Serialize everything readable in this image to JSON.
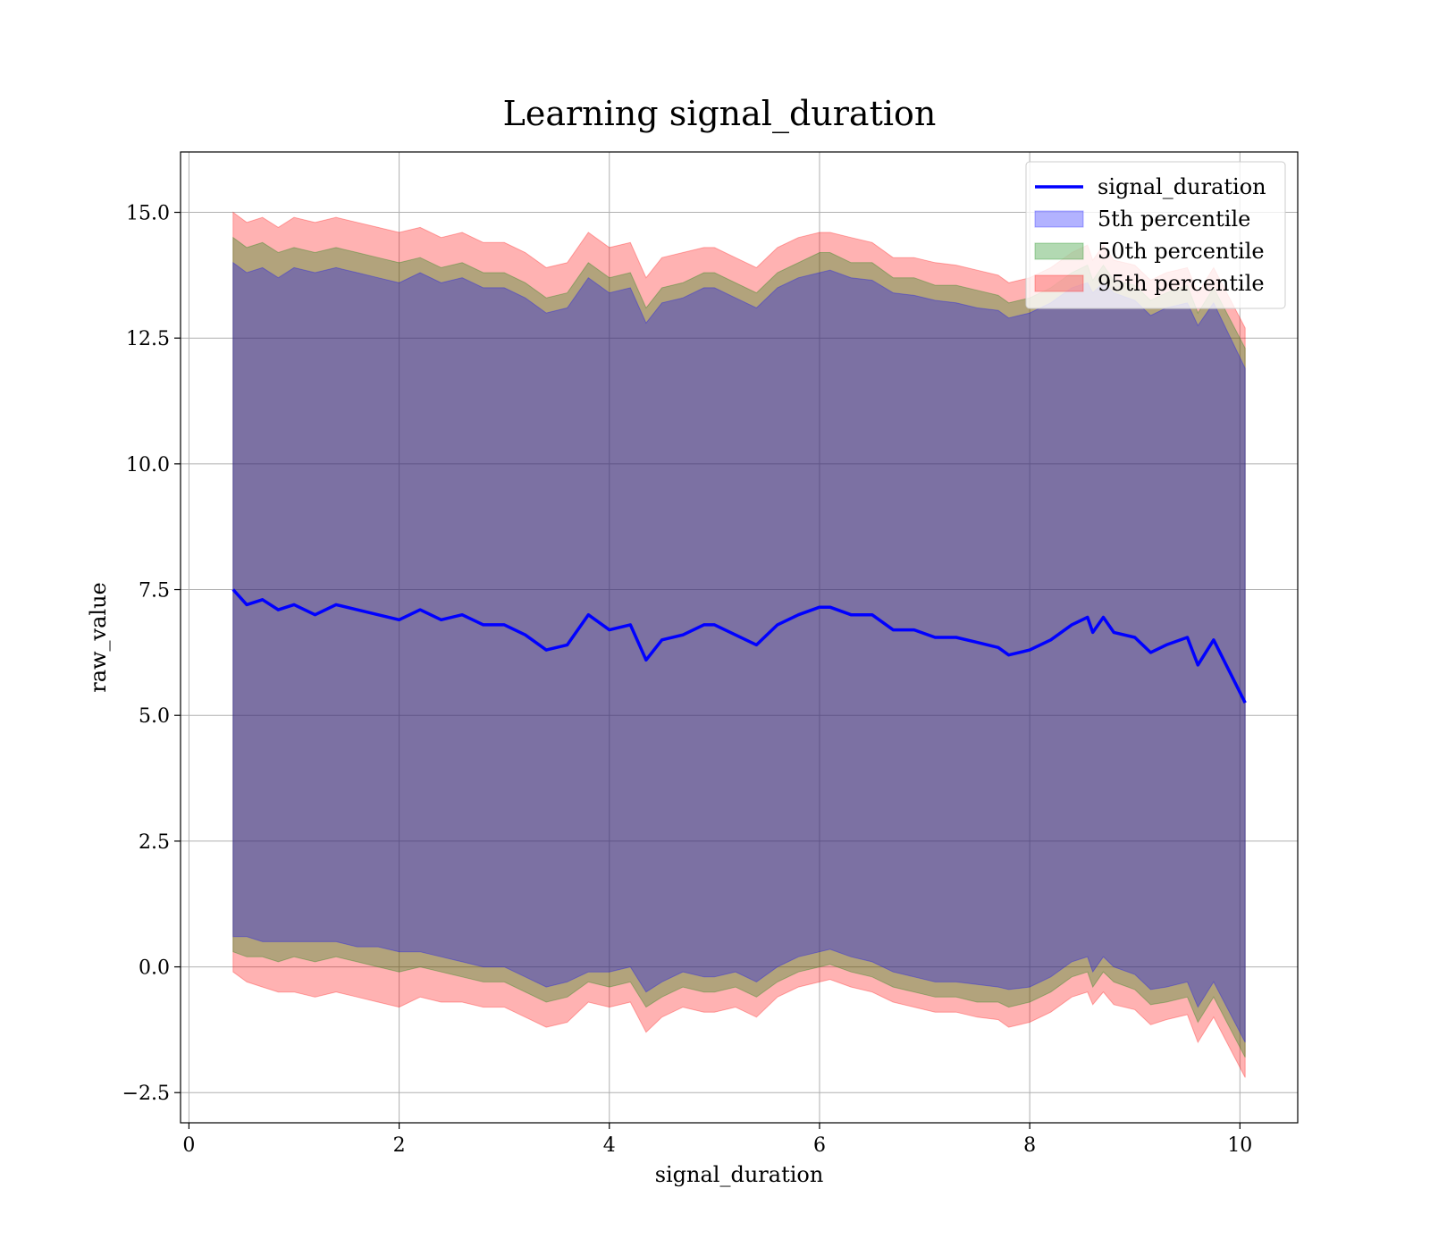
{
  "chart_data": {
    "type": "area",
    "title": "Learning signal_duration",
    "xlabel": "signal_duration",
    "ylabel": "raw_value",
    "xlim": [
      -0.08,
      10.55
    ],
    "ylim": [
      -3.1,
      16.2
    ],
    "xticks": [
      0,
      2,
      4,
      6,
      8,
      10
    ],
    "xtick_labels": [
      "0",
      "2",
      "4",
      "6",
      "8",
      "10"
    ],
    "yticks": [
      -2.5,
      0.0,
      2.5,
      5.0,
      7.5,
      10.0,
      12.5,
      15.0
    ],
    "ytick_labels": [
      "−2.5",
      "0.0",
      "2.5",
      "5.0",
      "7.5",
      "10.0",
      "12.5",
      "15.0"
    ],
    "grid": true,
    "legend_position": "top-right",
    "legend": [
      {
        "label": "signal_duration",
        "kind": "line",
        "color": "#0000ff"
      },
      {
        "label": "5th percentile",
        "kind": "band",
        "color": "#0000ff"
      },
      {
        "label": "50th percentile",
        "kind": "band",
        "color": "#008000"
      },
      {
        "label": "95th percentile",
        "kind": "band",
        "color": "#ff0000"
      }
    ],
    "x": [
      0.42,
      0.55,
      0.7,
      0.85,
      1.0,
      1.2,
      1.4,
      1.6,
      1.8,
      2.0,
      2.2,
      2.4,
      2.6,
      2.8,
      3.0,
      3.2,
      3.4,
      3.6,
      3.8,
      4.0,
      4.2,
      4.35,
      4.5,
      4.7,
      4.9,
      5.0,
      5.2,
      5.4,
      5.6,
      5.8,
      6.0,
      6.1,
      6.3,
      6.5,
      6.7,
      6.9,
      7.1,
      7.3,
      7.5,
      7.7,
      7.8,
      8.0,
      8.2,
      8.4,
      8.55,
      8.6,
      8.7,
      8.8,
      9.0,
      9.15,
      9.3,
      9.5,
      9.6,
      9.75,
      10.05
    ],
    "series": [
      {
        "name": "signal_duration",
        "values": [
          7.5,
          7.2,
          7.3,
          7.1,
          7.2,
          7.0,
          7.2,
          7.1,
          7.0,
          6.9,
          7.1,
          6.9,
          7.0,
          6.8,
          6.8,
          6.6,
          6.3,
          6.4,
          7.0,
          6.7,
          6.8,
          6.1,
          6.5,
          6.6,
          6.8,
          6.8,
          6.6,
          6.4,
          6.8,
          7.0,
          7.15,
          7.15,
          7.0,
          7.0,
          6.7,
          6.7,
          6.55,
          6.55,
          6.45,
          6.35,
          6.2,
          6.3,
          6.5,
          6.8,
          6.95,
          6.65,
          6.95,
          6.65,
          6.55,
          6.25,
          6.4,
          6.55,
          6.0,
          6.5,
          5.25
        ]
      },
      {
        "name": "5th percentile",
        "lower": [
          0.6,
          0.6,
          0.5,
          0.5,
          0.5,
          0.5,
          0.5,
          0.4,
          0.4,
          0.3,
          0.3,
          0.2,
          0.1,
          0.0,
          0.0,
          -0.2,
          -0.4,
          -0.3,
          -0.1,
          -0.1,
          0.0,
          -0.5,
          -0.3,
          -0.1,
          -0.2,
          -0.2,
          -0.1,
          -0.3,
          0.0,
          0.2,
          0.3,
          0.35,
          0.2,
          0.1,
          -0.1,
          -0.2,
          -0.3,
          -0.3,
          -0.35,
          -0.4,
          -0.45,
          -0.4,
          -0.2,
          0.1,
          0.2,
          -0.1,
          0.2,
          0.0,
          -0.15,
          -0.45,
          -0.4,
          -0.3,
          -0.8,
          -0.3,
          -1.5
        ],
        "upper": [
          14.0,
          13.8,
          13.9,
          13.7,
          13.9,
          13.8,
          13.9,
          13.8,
          13.7,
          13.6,
          13.8,
          13.6,
          13.7,
          13.5,
          13.5,
          13.3,
          13.0,
          13.1,
          13.7,
          13.4,
          13.5,
          12.8,
          13.2,
          13.3,
          13.5,
          13.5,
          13.3,
          13.1,
          13.5,
          13.7,
          13.8,
          13.85,
          13.7,
          13.65,
          13.4,
          13.35,
          13.25,
          13.2,
          13.1,
          13.05,
          12.9,
          13.0,
          13.2,
          13.5,
          13.6,
          13.4,
          13.6,
          13.4,
          13.25,
          12.95,
          13.1,
          13.2,
          12.75,
          13.2,
          11.9
        ]
      },
      {
        "name": "50th percentile",
        "lower": [
          0.3,
          0.2,
          0.2,
          0.1,
          0.2,
          0.1,
          0.2,
          0.1,
          0.0,
          -0.1,
          0.0,
          -0.1,
          -0.2,
          -0.3,
          -0.3,
          -0.5,
          -0.7,
          -0.6,
          -0.3,
          -0.4,
          -0.3,
          -0.8,
          -0.6,
          -0.4,
          -0.5,
          -0.5,
          -0.4,
          -0.6,
          -0.3,
          -0.1,
          0.0,
          0.05,
          -0.1,
          -0.2,
          -0.4,
          -0.5,
          -0.6,
          -0.6,
          -0.7,
          -0.7,
          -0.8,
          -0.7,
          -0.5,
          -0.2,
          -0.1,
          -0.4,
          -0.1,
          -0.3,
          -0.45,
          -0.75,
          -0.7,
          -0.6,
          -1.1,
          -0.6,
          -1.8
        ],
        "upper": [
          14.5,
          14.3,
          14.4,
          14.2,
          14.3,
          14.2,
          14.3,
          14.2,
          14.1,
          14.0,
          14.1,
          13.9,
          14.0,
          13.8,
          13.8,
          13.6,
          13.3,
          13.4,
          14.0,
          13.7,
          13.8,
          13.1,
          13.5,
          13.6,
          13.8,
          13.8,
          13.6,
          13.4,
          13.8,
          14.0,
          14.2,
          14.2,
          14.0,
          14.0,
          13.7,
          13.7,
          13.55,
          13.55,
          13.45,
          13.35,
          13.2,
          13.3,
          13.5,
          13.8,
          13.95,
          13.65,
          13.95,
          13.65,
          13.55,
          13.25,
          13.4,
          13.55,
          13.0,
          13.5,
          12.3
        ]
      },
      {
        "name": "95th percentile",
        "lower": [
          -0.1,
          -0.3,
          -0.4,
          -0.5,
          -0.5,
          -0.6,
          -0.5,
          -0.6,
          -0.7,
          -0.8,
          -0.6,
          -0.7,
          -0.7,
          -0.8,
          -0.8,
          -1.0,
          -1.2,
          -1.1,
          -0.7,
          -0.8,
          -0.7,
          -1.3,
          -1.0,
          -0.8,
          -0.9,
          -0.9,
          -0.8,
          -1.0,
          -0.6,
          -0.4,
          -0.3,
          -0.25,
          -0.4,
          -0.5,
          -0.7,
          -0.8,
          -0.9,
          -0.9,
          -1.0,
          -1.05,
          -1.2,
          -1.1,
          -0.9,
          -0.6,
          -0.5,
          -0.75,
          -0.5,
          -0.75,
          -0.85,
          -1.15,
          -1.05,
          -0.95,
          -1.5,
          -1.0,
          -2.2
        ],
        "upper": [
          15.0,
          14.8,
          14.9,
          14.7,
          14.9,
          14.8,
          14.9,
          14.8,
          14.7,
          14.6,
          14.7,
          14.5,
          14.6,
          14.4,
          14.4,
          14.2,
          13.9,
          14.0,
          14.6,
          14.3,
          14.4,
          13.7,
          14.1,
          14.2,
          14.3,
          14.3,
          14.1,
          13.9,
          14.3,
          14.5,
          14.6,
          14.6,
          14.5,
          14.4,
          14.1,
          14.1,
          14.0,
          13.95,
          13.85,
          13.75,
          13.6,
          13.7,
          13.9,
          14.2,
          14.35,
          14.05,
          14.35,
          14.05,
          13.95,
          13.65,
          13.8,
          13.9,
          13.4,
          13.9,
          12.7
        ]
      }
    ]
  }
}
